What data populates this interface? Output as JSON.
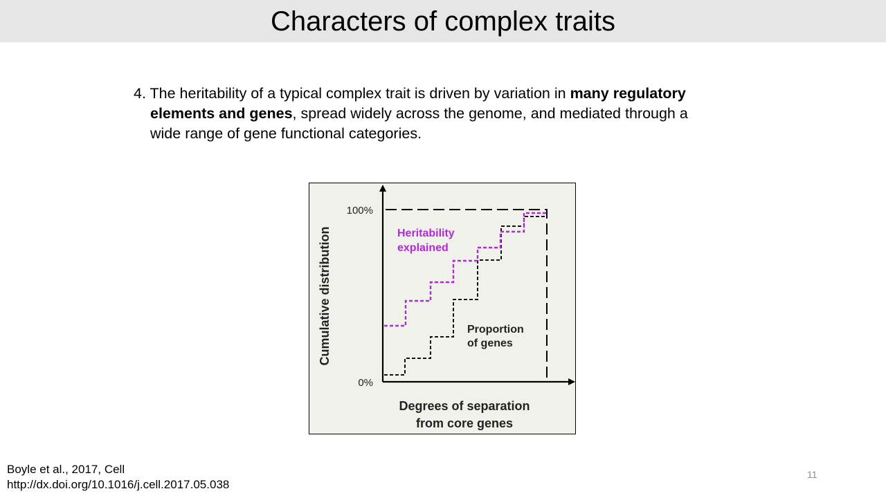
{
  "slide": {
    "title": "Characters of complex traits",
    "page_number": "11"
  },
  "bullet": {
    "prefix": "4. The heritability of a typical complex trait is driven by variation in ",
    "bold1": "many regulatory",
    "bold2": "elements and genes",
    "rest2": ", spread widely across the genome, and mediated through a",
    "line3": "wide range of gene functional categories."
  },
  "figure": {
    "y_axis_label": "Cumulative distribution",
    "x_axis_label_line1": "Degrees of separation",
    "x_axis_label_line2": "from core genes",
    "tick_top": "100%",
    "tick_bottom": "0%",
    "heritability_label_line1": "Heritability",
    "heritability_label_line2": "explained",
    "genes_label_line1": "Proportion",
    "genes_label_line2": "of genes",
    "heritability_color": "#b12ad6",
    "genes_color": "#111111"
  },
  "citation": {
    "line1": "Boyle et al., 2017, Cell",
    "line2": "http://dx.doi.org/10.1016/j.cell.2017.05.038"
  }
}
